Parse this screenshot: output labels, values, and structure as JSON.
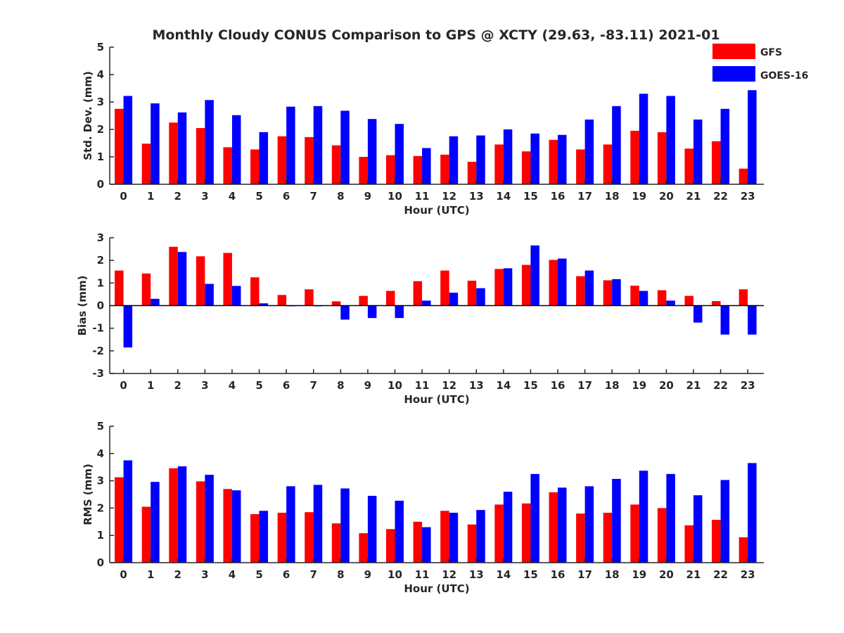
{
  "title": "Monthly Cloudy CONUS Comparison to GPS @ XCTY (29.63, -83.11) 2021-01",
  "legend": {
    "position": "top-right",
    "items": [
      {
        "label": "GFS",
        "color": "#ff0000"
      },
      {
        "label": "GOES-16",
        "color": "#0000ff"
      }
    ]
  },
  "chart_data": [
    {
      "type": "bar",
      "xlabel": "Hour (UTC)",
      "ylabel": "Std. Dev. (mm)",
      "ylim": [
        0,
        5
      ],
      "yticks": [
        0,
        1,
        2,
        3,
        4,
        5
      ],
      "categories": [
        "0",
        "1",
        "2",
        "3",
        "4",
        "5",
        "6",
        "7",
        "8",
        "9",
        "10",
        "11",
        "12",
        "13",
        "14",
        "15",
        "16",
        "17",
        "18",
        "19",
        "20",
        "21",
        "22",
        "23"
      ],
      "series": [
        {
          "name": "GFS",
          "color": "#ff0000",
          "values": [
            2.75,
            1.48,
            2.25,
            2.05,
            1.35,
            1.27,
            1.75,
            1.72,
            1.42,
            1.0,
            1.06,
            1.03,
            1.08,
            0.82,
            1.45,
            1.2,
            1.62,
            1.27,
            1.45,
            1.95,
            1.9,
            1.3,
            1.57,
            0.57
          ]
        },
        {
          "name": "GOES-16",
          "color": "#0000ff",
          "values": [
            3.22,
            2.95,
            2.62,
            3.07,
            2.52,
            1.9,
            2.83,
            2.85,
            2.68,
            2.38,
            2.2,
            1.32,
            1.75,
            1.78,
            2.0,
            1.85,
            1.8,
            2.36,
            2.85,
            3.3,
            3.22,
            2.36,
            2.75,
            3.43
          ]
        }
      ]
    },
    {
      "type": "bar",
      "xlabel": "Hour (UTC)",
      "ylabel": "Bias (mm)",
      "ylim": [
        -3,
        3
      ],
      "yticks": [
        -3,
        -2,
        -1,
        0,
        1,
        2,
        3
      ],
      "categories": [
        "0",
        "1",
        "2",
        "3",
        "4",
        "5",
        "6",
        "7",
        "8",
        "9",
        "10",
        "11",
        "12",
        "13",
        "14",
        "15",
        "16",
        "17",
        "18",
        "19",
        "20",
        "21",
        "22",
        "23"
      ],
      "series": [
        {
          "name": "GFS",
          "color": "#ff0000",
          "values": [
            1.55,
            1.42,
            2.6,
            2.18,
            2.33,
            1.25,
            0.47,
            0.72,
            0.19,
            0.43,
            0.65,
            1.08,
            1.55,
            1.1,
            1.62,
            1.8,
            2.02,
            1.3,
            1.12,
            0.88,
            0.68,
            0.43,
            0.2,
            0.72
          ]
        },
        {
          "name": "GOES-16",
          "color": "#0000ff",
          "values": [
            -1.85,
            0.3,
            2.37,
            0.96,
            0.87,
            0.1,
            -0.03,
            -0.03,
            -0.62,
            -0.55,
            -0.55,
            0.22,
            0.57,
            0.77,
            1.65,
            2.66,
            2.08,
            1.55,
            1.17,
            0.65,
            0.22,
            -0.75,
            -1.28,
            -1.28
          ]
        }
      ]
    },
    {
      "type": "bar",
      "xlabel": "Hour (UTC)",
      "ylabel": "RMS (mm)",
      "ylim": [
        0,
        5
      ],
      "yticks": [
        0,
        1,
        2,
        3,
        4,
        5
      ],
      "categories": [
        "0",
        "1",
        "2",
        "3",
        "4",
        "5",
        "6",
        "7",
        "8",
        "9",
        "10",
        "11",
        "12",
        "13",
        "14",
        "15",
        "16",
        "17",
        "18",
        "19",
        "20",
        "21",
        "22",
        "23"
      ],
      "series": [
        {
          "name": "GFS",
          "color": "#ff0000",
          "values": [
            3.13,
            2.05,
            3.46,
            2.98,
            2.7,
            1.78,
            1.83,
            1.85,
            1.44,
            1.08,
            1.23,
            1.5,
            1.9,
            1.4,
            2.13,
            2.17,
            2.58,
            1.8,
            1.83,
            2.13,
            2.0,
            1.37,
            1.57,
            0.93
          ]
        },
        {
          "name": "GOES-16",
          "color": "#0000ff",
          "values": [
            3.75,
            2.96,
            3.53,
            3.22,
            2.65,
            1.9,
            2.8,
            2.85,
            2.72,
            2.45,
            2.27,
            1.3,
            1.83,
            1.93,
            2.6,
            3.25,
            2.75,
            2.8,
            3.07,
            3.37,
            3.25,
            2.47,
            3.03,
            3.65
          ]
        }
      ]
    }
  ]
}
